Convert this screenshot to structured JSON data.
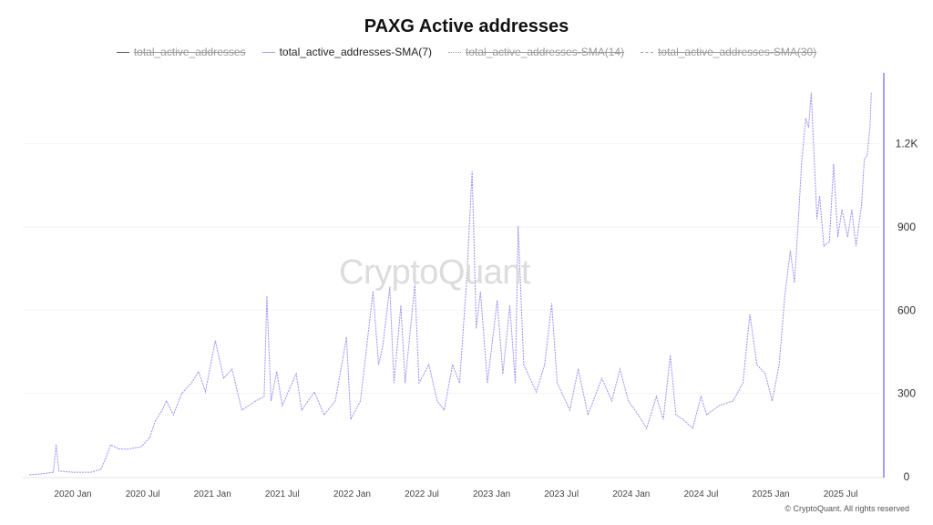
{
  "title": "PAXG Active addresses",
  "footer": "© CryptoQuant. All rights reserved",
  "watermark": "CryptoQuant",
  "legend": [
    {
      "label": "total_active_addresses",
      "active": false,
      "style": "solid",
      "color": "#555555"
    },
    {
      "label": "total_active_addresses-SMA(7)",
      "active": true,
      "style": "solid",
      "color": "#a69cf6"
    },
    {
      "label": "total_active_addresses-SMA(14)",
      "active": false,
      "style": "dotted",
      "color": "#a0a0a0"
    },
    {
      "label": "total_active_addresses-SMA(30)",
      "active": false,
      "style": "dashed",
      "color": "#a0a0a0"
    }
  ],
  "chart_data": {
    "type": "line",
    "title": "PAXG Active addresses",
    "xlabel": "",
    "ylabel": "",
    "ylim": [
      0,
      1400
    ],
    "y_ticks": [
      {
        "v": 0,
        "label": "0"
      },
      {
        "v": 300,
        "label": "300"
      },
      {
        "v": 600,
        "label": "600"
      },
      {
        "v": 900,
        "label": "900"
      },
      {
        "v": 1200,
        "label": "1.2K"
      }
    ],
    "x_ticks": [
      {
        "v": 2020.0,
        "label": "2020 Jan"
      },
      {
        "v": 2020.5,
        "label": "2020 Jul"
      },
      {
        "v": 2021.0,
        "label": "2021 Jan"
      },
      {
        "v": 2021.5,
        "label": "2021 Jul"
      },
      {
        "v": 2022.0,
        "label": "2022 Jan"
      },
      {
        "v": 2022.5,
        "label": "2022 Jul"
      },
      {
        "v": 2023.0,
        "label": "2023 Jan"
      },
      {
        "v": 2023.5,
        "label": "2023 Jul"
      },
      {
        "v": 2024.0,
        "label": "2024 Jan"
      },
      {
        "v": 2024.5,
        "label": "2024 Jul"
      },
      {
        "v": 2025.0,
        "label": "2025 Jan"
      },
      {
        "v": 2025.5,
        "label": "2025 Jul"
      }
    ],
    "series": [
      {
        "name": "total_active_addresses-SMA(7)",
        "color": "#9d90f4",
        "points": [
          [
            2019.69,
            7
          ],
          [
            2019.77,
            10
          ],
          [
            2019.86,
            16
          ],
          [
            2019.88,
            115
          ],
          [
            2019.9,
            20
          ],
          [
            2020.0,
            16
          ],
          [
            2020.13,
            16
          ],
          [
            2020.2,
            26
          ],
          [
            2020.23,
            59
          ],
          [
            2020.27,
            115
          ],
          [
            2020.33,
            100
          ],
          [
            2020.39,
            99
          ],
          [
            2020.49,
            108
          ],
          [
            2020.55,
            141
          ],
          [
            2020.59,
            200
          ],
          [
            2020.64,
            240
          ],
          [
            2020.67,
            273
          ],
          [
            2020.72,
            223
          ],
          [
            2020.78,
            300
          ],
          [
            2020.85,
            338
          ],
          [
            2020.9,
            378
          ],
          [
            2020.95,
            306
          ],
          [
            2021.02,
            490
          ],
          [
            2021.08,
            355
          ],
          [
            2021.14,
            388
          ],
          [
            2021.21,
            240
          ],
          [
            2021.31,
            273
          ],
          [
            2021.37,
            289
          ],
          [
            2021.39,
            650
          ],
          [
            2021.42,
            273
          ],
          [
            2021.46,
            378
          ],
          [
            2021.5,
            256
          ],
          [
            2021.6,
            371
          ],
          [
            2021.64,
            240
          ],
          [
            2021.73,
            305
          ],
          [
            2021.8,
            223
          ],
          [
            2021.88,
            273
          ],
          [
            2021.96,
            502
          ],
          [
            2021.99,
            207
          ],
          [
            2022.06,
            273
          ],
          [
            2022.15,
            667
          ],
          [
            2022.19,
            404
          ],
          [
            2022.22,
            470
          ],
          [
            2022.27,
            683
          ],
          [
            2022.3,
            338
          ],
          [
            2022.35,
            617
          ],
          [
            2022.38,
            338
          ],
          [
            2022.45,
            693
          ],
          [
            2022.48,
            338
          ],
          [
            2022.55,
            404
          ],
          [
            2022.61,
            273
          ],
          [
            2022.66,
            240
          ],
          [
            2022.72,
            404
          ],
          [
            2022.77,
            338
          ],
          [
            2022.82,
            700
          ],
          [
            2022.86,
            1100
          ],
          [
            2022.89,
            535
          ],
          [
            2022.92,
            667
          ],
          [
            2022.97,
            338
          ],
          [
            2023.04,
            634
          ],
          [
            2023.08,
            371
          ],
          [
            2023.13,
            617
          ],
          [
            2023.17,
            338
          ],
          [
            2023.19,
            903
          ],
          [
            2023.23,
            404
          ],
          [
            2023.32,
            305
          ],
          [
            2023.38,
            404
          ],
          [
            2023.43,
            624
          ],
          [
            2023.47,
            338
          ],
          [
            2023.56,
            240
          ],
          [
            2023.62,
            388
          ],
          [
            2023.69,
            223
          ],
          [
            2023.79,
            355
          ],
          [
            2023.86,
            273
          ],
          [
            2023.92,
            388
          ],
          [
            2023.98,
            273
          ],
          [
            2024.05,
            223
          ],
          [
            2024.11,
            174
          ],
          [
            2024.18,
            289
          ],
          [
            2024.23,
            207
          ],
          [
            2024.28,
            437
          ],
          [
            2024.32,
            223
          ],
          [
            2024.37,
            207
          ],
          [
            2024.44,
            174
          ],
          [
            2024.5,
            289
          ],
          [
            2024.54,
            223
          ],
          [
            2024.63,
            256
          ],
          [
            2024.73,
            273
          ],
          [
            2024.8,
            338
          ],
          [
            2024.85,
            585
          ],
          [
            2024.9,
            404
          ],
          [
            2024.96,
            371
          ],
          [
            2025.01,
            273
          ],
          [
            2025.06,
            404
          ],
          [
            2025.1,
            650
          ],
          [
            2025.14,
            814
          ],
          [
            2025.17,
            700
          ],
          [
            2025.2,
            946
          ],
          [
            2025.22,
            1126
          ],
          [
            2025.25,
            1291
          ],
          [
            2025.27,
            1258
          ],
          [
            2025.29,
            1383
          ],
          [
            2025.33,
            929
          ],
          [
            2025.35,
            1011
          ],
          [
            2025.38,
            831
          ],
          [
            2025.42,
            847
          ],
          [
            2025.45,
            1126
          ],
          [
            2025.48,
            864
          ],
          [
            2025.51,
            962
          ],
          [
            2025.55,
            864
          ],
          [
            2025.58,
            962
          ],
          [
            2025.61,
            831
          ],
          [
            2025.65,
            979
          ],
          [
            2025.67,
            1143
          ],
          [
            2025.69,
            1159
          ],
          [
            2025.71,
            1258
          ],
          [
            2025.72,
            1383
          ]
        ]
      }
    ]
  }
}
